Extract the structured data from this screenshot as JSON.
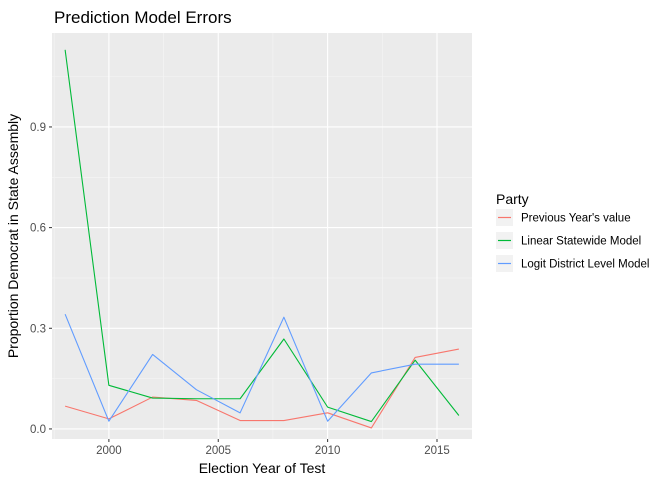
{
  "chart_data": {
    "type": "line",
    "title": "Prediction Model Errors",
    "xlabel": "Election Year of Test",
    "ylabel": "Proportion Democrat in State Assembly",
    "xlim": [
      1997.4,
      2016.6
    ],
    "ylim": [
      -0.03,
      1.18
    ],
    "x_ticks": [
      2000,
      2005,
      2010,
      2015
    ],
    "x_tick_labels": [
      "2000",
      "2005",
      "2010",
      "2015"
    ],
    "y_ticks": [
      0.0,
      0.3,
      0.6,
      0.9
    ],
    "y_tick_labels": [
      "0.0",
      "0.3",
      "0.6",
      "0.9"
    ],
    "grid": true,
    "legend": {
      "title": "Party",
      "position": "right"
    },
    "x": [
      1998,
      2000,
      2002,
      2004,
      2006,
      2008,
      2010,
      2012,
      2014,
      2016
    ],
    "series": [
      {
        "name": "Previous Year's value",
        "color": "#F8766D",
        "values": [
          0.068,
          0.03,
          0.095,
          0.085,
          0.025,
          0.025,
          0.048,
          0.003,
          0.213,
          0.238
        ]
      },
      {
        "name": "Linear Statewide Model",
        "color": "#00BA38",
        "values": [
          1.13,
          0.13,
          0.092,
          0.09,
          0.09,
          0.268,
          0.065,
          0.022,
          0.205,
          0.04
        ]
      },
      {
        "name": "Logit District Level Model",
        "color": "#619CFF",
        "values": [
          0.342,
          0.023,
          0.222,
          0.117,
          0.048,
          0.333,
          0.023,
          0.167,
          0.193,
          0.193
        ]
      }
    ]
  }
}
